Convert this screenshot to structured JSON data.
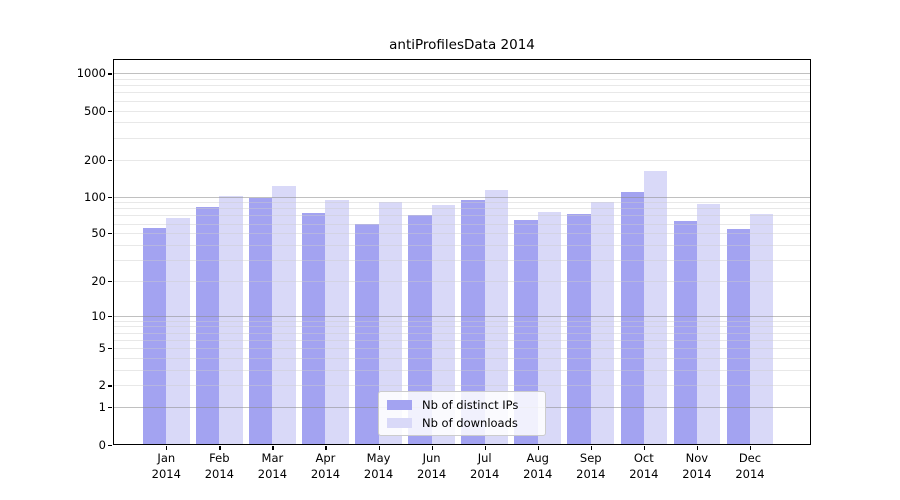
{
  "title": "antiProfilesData 2014",
  "chart_data": {
    "type": "bar",
    "title": "antiProfilesData 2014",
    "scale": "log1p",
    "categories": [
      "Jan",
      "Feb",
      "Mar",
      "Apr",
      "May",
      "Jun",
      "Jul",
      "Aug",
      "Sep",
      "Oct",
      "Nov",
      "Dec"
    ],
    "year_label": "2014",
    "series": [
      {
        "name": "Nb of distinct IPs",
        "color": "#a3a3f1",
        "values": [
          55,
          82,
          98,
          74,
          60,
          71,
          93,
          64,
          72,
          109,
          63,
          54
        ]
      },
      {
        "name": "Nb of downloads",
        "color": "#d9d9f8",
        "values": [
          67,
          102,
          122,
          93,
          91,
          86,
          114,
          75,
          90,
          163,
          87,
          72
        ]
      }
    ],
    "y_ticks": [
      0,
      1,
      2,
      5,
      10,
      20,
      50,
      100,
      200,
      500,
      1000
    ],
    "ylim": [
      0,
      1300
    ],
    "xlabel": "",
    "ylabel": "",
    "grid": true,
    "legend_position": "bottom-center"
  },
  "legend": {
    "items": [
      {
        "label": "Nb of distinct IPs"
      },
      {
        "label": "Nb of downloads"
      }
    ]
  },
  "colors": {
    "bar_dark": "#a3a3f1",
    "bar_light": "#d9d9f8",
    "axis": "#000000",
    "grid_major": "#c5c5c5",
    "grid_minor": "#e6e6e6",
    "legend_border": "#cccccc"
  }
}
